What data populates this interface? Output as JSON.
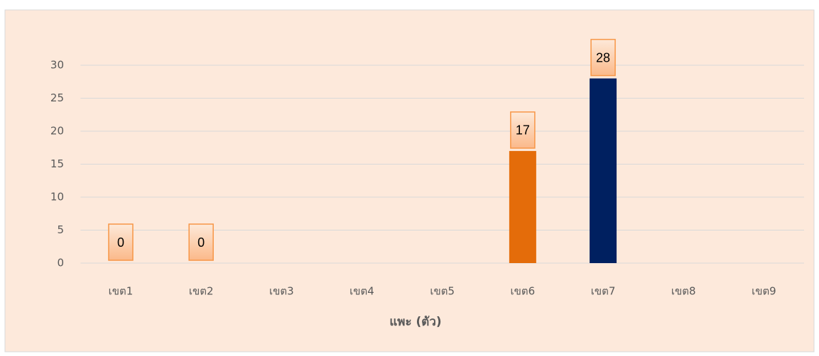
{
  "chart_data": {
    "type": "bar",
    "x_label": "แพะ (ตัว)",
    "categories": [
      "เขต1",
      "เขต2",
      "เขต3",
      "เขต4",
      "เขต5",
      "เขต6",
      "เขต7",
      "เขต8",
      "เขต9"
    ],
    "values": [
      0,
      0,
      null,
      null,
      null,
      17,
      28,
      null,
      null
    ],
    "colors": [
      "#e46c0a",
      "#e46c0a",
      null,
      null,
      null,
      "#e46c0a",
      "#002060",
      null,
      null
    ],
    "ylim": [
      0,
      30
    ],
    "yticks": [
      0,
      5,
      10,
      15,
      20,
      25,
      30
    ],
    "grid": true
  }
}
